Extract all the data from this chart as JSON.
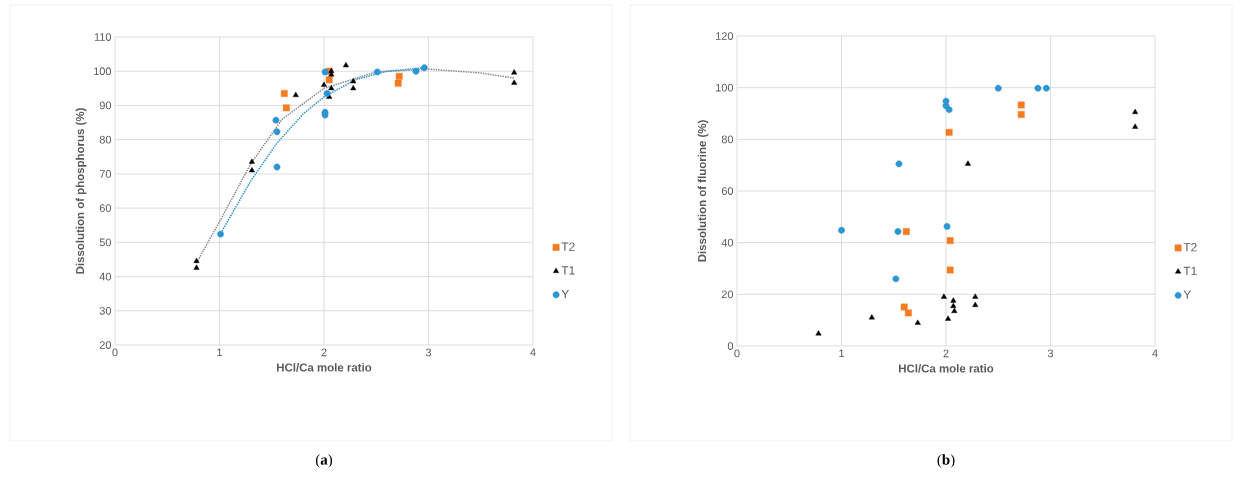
{
  "chart_data": [
    {
      "type": "scatter",
      "xlabel": "HCl/Ca mole ratio",
      "ylabel": "Dissolution of phosphorus (%)",
      "xlim": [
        0,
        4
      ],
      "ylim": [
        20,
        110
      ],
      "xticks": [
        0,
        1,
        2,
        3,
        4
      ],
      "yticks": [
        20,
        30,
        40,
        50,
        60,
        70,
        80,
        90,
        100,
        110
      ],
      "grid": true,
      "legend": "right",
      "annotations": [
        "(**a**)"
      ],
      "series": [
        {
          "name": "T2",
          "color": "#f47b20",
          "marker": "square",
          "x": [
            1.62,
            1.64,
            2.05,
            2.05,
            2.71,
            2.72
          ],
          "values": [
            93.5,
            89.3,
            100,
            97.5,
            96.5,
            98.5
          ]
        },
        {
          "name": "T1",
          "color": "#000000",
          "marker": "triangle",
          "x": [
            0.78,
            0.78,
            1.31,
            1.31,
            1.73,
            2.0,
            2.05,
            2.07,
            2.07,
            2.07,
            2.21,
            2.28,
            2.28,
            3.82,
            3.82
          ],
          "values": [
            44.5,
            42.5,
            73.5,
            71,
            93,
            96,
            92.5,
            100,
            99,
            95,
            101.7,
            97,
            95,
            99.6,
            96.6
          ]
        },
        {
          "name": "Y",
          "color": "#2e95d3",
          "marker": "circle",
          "x": [
            1.01,
            1.54,
            1.55,
            1.55,
            2.01,
            2.03,
            2.01,
            2.01,
            2.51,
            2.88,
            2.96
          ],
          "values": [
            52.4,
            85.7,
            82.3,
            72,
            99.8,
            93.5,
            88,
            87.2,
            99.8,
            100,
            101
          ]
        },
        {
          "type": "line",
          "color": "#8c8c8c",
          "line_style": "dotted",
          "marker": "none",
          "x": [
            0.78,
            1.0,
            1.3,
            1.6,
            2.0,
            2.5,
            3.0,
            3.5,
            3.82
          ],
          "values": [
            44,
            56,
            73,
            86,
            95,
            99.8,
            100.6,
            99.5,
            98
          ]
        },
        {
          "type": "line",
          "color": "#2e95d3",
          "line_style": "dotted",
          "marker": "none",
          "x": [
            1.0,
            1.3,
            1.55,
            1.8,
            2.0,
            2.3,
            2.6,
            2.96
          ],
          "values": [
            52,
            68,
            79,
            87.5,
            92.5,
            97.5,
            100,
            101
          ]
        }
      ]
    },
    {
      "type": "scatter",
      "xlabel": "HCl/Ca mole ratio",
      "ylabel": "Dissolution of fluorine (%)",
      "xlim": [
        0,
        4
      ],
      "ylim": [
        0,
        120
      ],
      "xticks": [
        0,
        1,
        2,
        3,
        4
      ],
      "yticks": [
        0,
        20,
        40,
        60,
        80,
        100,
        120
      ],
      "grid": true,
      "legend": "right",
      "annotations": [
        "(**b**)"
      ],
      "series": [
        {
          "name": "T2",
          "color": "#f47b20",
          "marker": "square",
          "x": [
            1.62,
            2.03,
            2.04,
            2.04,
            1.6,
            1.64,
            2.72,
            2.72
          ],
          "values": [
            44.3,
            82.7,
            40.8,
            29.4,
            15.1,
            12.8,
            93.3,
            89.6
          ]
        },
        {
          "name": "T1",
          "color": "#000000",
          "marker": "triangle",
          "x": [
            0.78,
            1.29,
            1.73,
            1.98,
            2.02,
            2.07,
            2.07,
            2.08,
            2.28,
            2.28,
            2.21,
            3.81,
            3.81
          ],
          "values": [
            4.8,
            11,
            8.9,
            19,
            10.5,
            17.5,
            15.4,
            13.5,
            19,
            15.8,
            70.5,
            90.5,
            84.8
          ]
        },
        {
          "name": "Y",
          "color": "#2e95d3",
          "marker": "circle",
          "x": [
            1.0,
            1.54,
            1.55,
            1.52,
            2.0,
            2.0,
            2.03,
            2.01,
            2.5,
            2.88,
            2.96
          ],
          "values": [
            44.8,
            44.3,
            70.5,
            26,
            94.8,
            93,
            91.5,
            46.3,
            99.8,
            99.8,
            99.8
          ]
        }
      ]
    }
  ]
}
